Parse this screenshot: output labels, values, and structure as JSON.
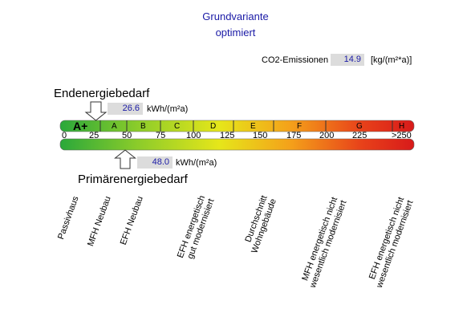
{
  "header": {
    "title_line1": "Grundvariante",
    "title_line2": "optimiert"
  },
  "co2": {
    "label": "CO2-Emissionen",
    "value": "14.9",
    "unit": "[kg/(m²*a)]"
  },
  "end_energy": {
    "label": "Endenergiebedarf",
    "value": "26.6",
    "unit": "kWh/(m²a)"
  },
  "primary_energy": {
    "label": "Primärenergiebedarf",
    "value": "48.0",
    "unit": "kWh/(m²a)"
  },
  "scale": {
    "classes": [
      "A+",
      "A",
      "B",
      "C",
      "D",
      "E",
      "F",
      "G",
      "H"
    ],
    "ticks": [
      "0",
      "25",
      "50",
      "75",
      "100",
      "125",
      "150",
      "175",
      "200",
      "225",
      ">250"
    ]
  },
  "references": {
    "passivhaus": "Passivhaus",
    "mfh_neubau": "MFH Neubau",
    "efh_neubau": "EFH Neubau",
    "efh_gut_1": "EFH energetisch",
    "efh_gut_2": "gut modernisiert",
    "durchschnitt_1": "Durchschnitt",
    "durchschnitt_2": "Wohngebäude",
    "mfh_nicht_1": "MFH energetisch nicht",
    "mfh_nicht_2": "wesentlich modernisiert",
    "efh_nicht_1": "EFH energetisch nicht",
    "efh_nicht_2": "wesentlich modernisiert"
  },
  "colors": {
    "title": "#1a1aa6",
    "gradient": [
      "#2aa83a",
      "#8ccc2a",
      "#e6e61a",
      "#f4a11a",
      "#e8421a",
      "#d81a1a"
    ]
  },
  "icons": {
    "end_marker": "down-arrow-icon",
    "primary_marker": "up-arrow-icon"
  }
}
